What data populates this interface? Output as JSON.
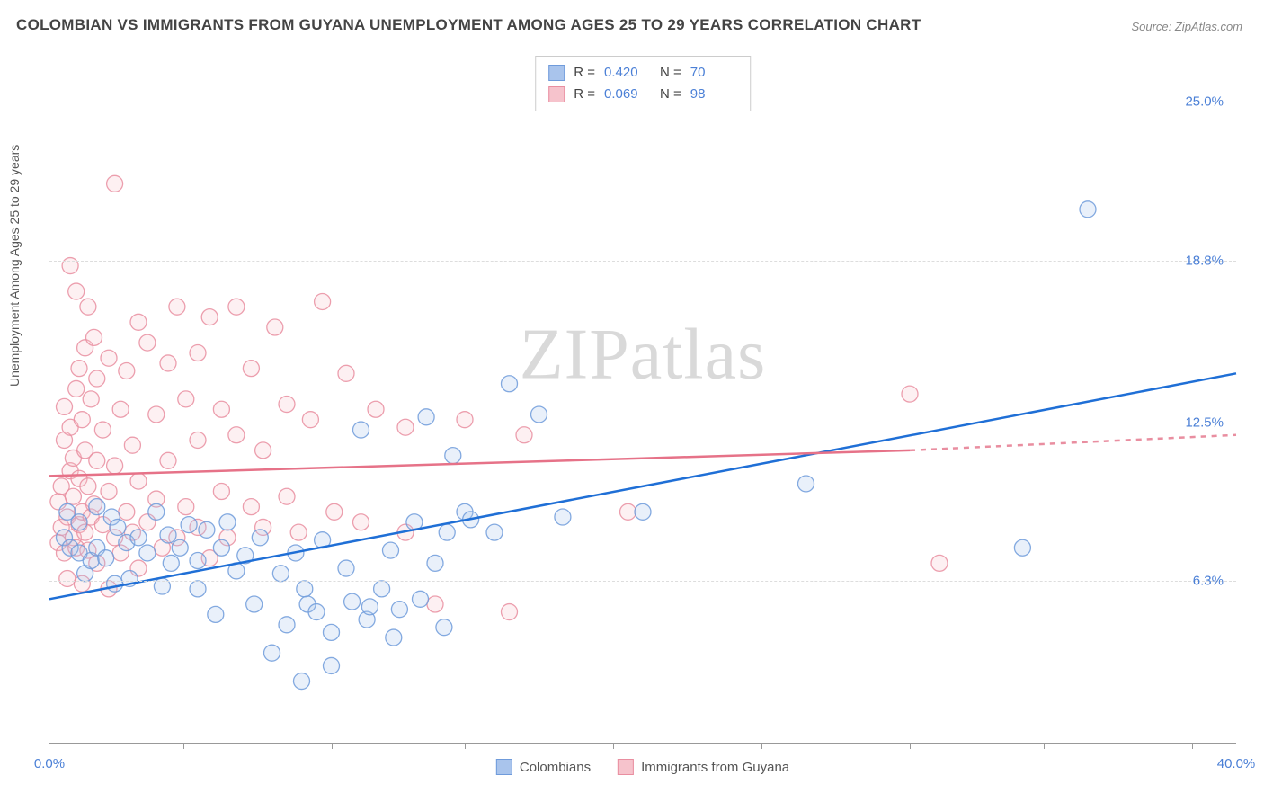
{
  "title": "COLOMBIAN VS IMMIGRANTS FROM GUYANA UNEMPLOYMENT AMONG AGES 25 TO 29 YEARS CORRELATION CHART",
  "source": "Source: ZipAtlas.com",
  "y_axis_label": "Unemployment Among Ages 25 to 29 years",
  "watermark": "ZIPatlas",
  "chart": {
    "type": "scatter",
    "xlim": [
      0,
      40
    ],
    "ylim": [
      0,
      27
    ],
    "y_ticks": [
      6.3,
      12.5,
      18.8,
      25.0
    ],
    "y_tick_labels": [
      "6.3%",
      "12.5%",
      "18.8%",
      "25.0%"
    ],
    "x_range_labels": {
      "min": "0.0%",
      "max": "40.0%"
    },
    "x_tick_positions": [
      4.5,
      9.5,
      14,
      19,
      24,
      29,
      33.5,
      38.5
    ],
    "background_color": "#ffffff",
    "grid_color": "#dddddd",
    "marker_radius": 9,
    "marker_opacity_fill": 0.25,
    "marker_opacity_stroke": 0.85,
    "line_width": 2.5,
    "colors": {
      "blue_fill": "#a9c4ec",
      "blue_stroke": "#6f9bdb",
      "blue_line": "#1f6fd6",
      "pink_fill": "#f6c3cc",
      "pink_stroke": "#e98ea0",
      "pink_line": "#e67288",
      "axis_label": "#4a7fd6"
    },
    "series": [
      {
        "name": "Colombians",
        "key": "blue",
        "r": "0.420",
        "n": "70",
        "regression": {
          "x1": 0,
          "y1": 5.6,
          "x2": 40,
          "y2": 14.4
        },
        "points": [
          [
            0.5,
            8.0
          ],
          [
            0.7,
            7.6
          ],
          [
            0.6,
            9.0
          ],
          [
            1.0,
            7.4
          ],
          [
            1.0,
            8.6
          ],
          [
            1.2,
            6.6
          ],
          [
            1.4,
            7.1
          ],
          [
            1.6,
            9.2
          ],
          [
            1.6,
            7.6
          ],
          [
            1.9,
            7.2
          ],
          [
            2.1,
            8.8
          ],
          [
            2.2,
            6.2
          ],
          [
            2.3,
            8.4
          ],
          [
            2.6,
            7.8
          ],
          [
            2.7,
            6.4
          ],
          [
            3.0,
            8.0
          ],
          [
            3.3,
            7.4
          ],
          [
            3.6,
            9.0
          ],
          [
            3.8,
            6.1
          ],
          [
            4.0,
            8.1
          ],
          [
            4.1,
            7.0
          ],
          [
            4.4,
            7.6
          ],
          [
            4.7,
            8.5
          ],
          [
            5.0,
            7.1
          ],
          [
            5.0,
            6.0
          ],
          [
            5.3,
            8.3
          ],
          [
            5.6,
            5.0
          ],
          [
            5.8,
            7.6
          ],
          [
            6.0,
            8.6
          ],
          [
            6.3,
            6.7
          ],
          [
            6.6,
            7.3
          ],
          [
            6.9,
            5.4
          ],
          [
            7.1,
            8.0
          ],
          [
            7.5,
            3.5
          ],
          [
            7.8,
            6.6
          ],
          [
            8.0,
            4.6
          ],
          [
            8.3,
            7.4
          ],
          [
            8.5,
            2.4
          ],
          [
            8.6,
            6.0
          ],
          [
            8.7,
            5.4
          ],
          [
            9.0,
            5.1
          ],
          [
            9.2,
            7.9
          ],
          [
            9.5,
            4.3
          ],
          [
            9.5,
            3.0
          ],
          [
            10.0,
            6.8
          ],
          [
            10.2,
            5.5
          ],
          [
            10.5,
            12.2
          ],
          [
            10.7,
            4.8
          ],
          [
            10.8,
            5.3
          ],
          [
            11.2,
            6.0
          ],
          [
            11.5,
            7.5
          ],
          [
            11.6,
            4.1
          ],
          [
            11.8,
            5.2
          ],
          [
            12.3,
            8.6
          ],
          [
            12.5,
            5.6
          ],
          [
            12.7,
            12.7
          ],
          [
            13.0,
            7.0
          ],
          [
            13.3,
            4.5
          ],
          [
            13.4,
            8.2
          ],
          [
            13.6,
            11.2
          ],
          [
            14.0,
            9.0
          ],
          [
            14.2,
            8.7
          ],
          [
            15.0,
            8.2
          ],
          [
            15.5,
            14.0
          ],
          [
            16.5,
            12.8
          ],
          [
            17.3,
            8.8
          ],
          [
            20.0,
            9.0
          ],
          [
            25.5,
            10.1
          ],
          [
            32.8,
            7.6
          ],
          [
            35.0,
            20.8
          ]
        ]
      },
      {
        "name": "Immigrants from Guyana",
        "key": "pink",
        "r": "0.069",
        "n": "98",
        "regression_solid": {
          "x1": 0,
          "y1": 10.4,
          "x2": 29,
          "y2": 11.4
        },
        "regression_dash": {
          "x1": 29,
          "y1": 11.4,
          "x2": 40,
          "y2": 12.0
        },
        "points": [
          [
            0.3,
            7.8
          ],
          [
            0.3,
            9.4
          ],
          [
            0.4,
            8.4
          ],
          [
            0.4,
            10.0
          ],
          [
            0.5,
            11.8
          ],
          [
            0.5,
            7.4
          ],
          [
            0.5,
            13.1
          ],
          [
            0.6,
            8.8
          ],
          [
            0.6,
            6.4
          ],
          [
            0.7,
            10.6
          ],
          [
            0.7,
            12.3
          ],
          [
            0.7,
            18.6
          ],
          [
            0.8,
            8.0
          ],
          [
            0.8,
            9.6
          ],
          [
            0.8,
            11.1
          ],
          [
            0.9,
            7.6
          ],
          [
            0.9,
            17.6
          ],
          [
            0.9,
            13.8
          ],
          [
            1.0,
            8.5
          ],
          [
            1.0,
            10.3
          ],
          [
            1.0,
            14.6
          ],
          [
            1.1,
            6.2
          ],
          [
            1.1,
            9.0
          ],
          [
            1.1,
            12.6
          ],
          [
            1.2,
            8.2
          ],
          [
            1.2,
            11.4
          ],
          [
            1.2,
            15.4
          ],
          [
            1.3,
            7.5
          ],
          [
            1.3,
            10.0
          ],
          [
            1.3,
            17.0
          ],
          [
            1.4,
            8.8
          ],
          [
            1.4,
            13.4
          ],
          [
            1.5,
            9.3
          ],
          [
            1.5,
            15.8
          ],
          [
            1.6,
            7.0
          ],
          [
            1.6,
            11.0
          ],
          [
            1.6,
            14.2
          ],
          [
            1.8,
            8.5
          ],
          [
            1.8,
            12.2
          ],
          [
            2.0,
            9.8
          ],
          [
            2.0,
            6.0
          ],
          [
            2.0,
            15.0
          ],
          [
            2.2,
            8.0
          ],
          [
            2.2,
            10.8
          ],
          [
            2.2,
            21.8
          ],
          [
            2.4,
            7.4
          ],
          [
            2.4,
            13.0
          ],
          [
            2.6,
            9.0
          ],
          [
            2.6,
            14.5
          ],
          [
            2.8,
            8.2
          ],
          [
            2.8,
            11.6
          ],
          [
            3.0,
            6.8
          ],
          [
            3.0,
            10.2
          ],
          [
            3.0,
            16.4
          ],
          [
            3.3,
            8.6
          ],
          [
            3.3,
            15.6
          ],
          [
            3.6,
            9.5
          ],
          [
            3.6,
            12.8
          ],
          [
            3.8,
            7.6
          ],
          [
            4.0,
            11.0
          ],
          [
            4.0,
            14.8
          ],
          [
            4.3,
            8.0
          ],
          [
            4.3,
            17.0
          ],
          [
            4.6,
            9.2
          ],
          [
            4.6,
            13.4
          ],
          [
            5.0,
            8.4
          ],
          [
            5.0,
            11.8
          ],
          [
            5.0,
            15.2
          ],
          [
            5.4,
            7.2
          ],
          [
            5.4,
            16.6
          ],
          [
            5.8,
            9.8
          ],
          [
            5.8,
            13.0
          ],
          [
            6.0,
            8.0
          ],
          [
            6.3,
            12.0
          ],
          [
            6.3,
            17.0
          ],
          [
            6.8,
            9.2
          ],
          [
            6.8,
            14.6
          ],
          [
            7.2,
            8.4
          ],
          [
            7.2,
            11.4
          ],
          [
            7.6,
            16.2
          ],
          [
            8.0,
            9.6
          ],
          [
            8.0,
            13.2
          ],
          [
            8.4,
            8.2
          ],
          [
            8.8,
            12.6
          ],
          [
            9.2,
            17.2
          ],
          [
            9.6,
            9.0
          ],
          [
            10.0,
            14.4
          ],
          [
            10.5,
            8.6
          ],
          [
            11.0,
            13.0
          ],
          [
            12.0,
            8.2
          ],
          [
            12.0,
            12.3
          ],
          [
            13.0,
            5.4
          ],
          [
            14.0,
            12.6
          ],
          [
            15.5,
            5.1
          ],
          [
            16.0,
            12.0
          ],
          [
            19.5,
            9.0
          ],
          [
            29.0,
            13.6
          ],
          [
            30.0,
            7.0
          ]
        ]
      }
    ]
  },
  "legend_bottom": [
    {
      "label": "Colombians",
      "key": "blue"
    },
    {
      "label": "Immigrants from Guyana",
      "key": "pink"
    }
  ]
}
